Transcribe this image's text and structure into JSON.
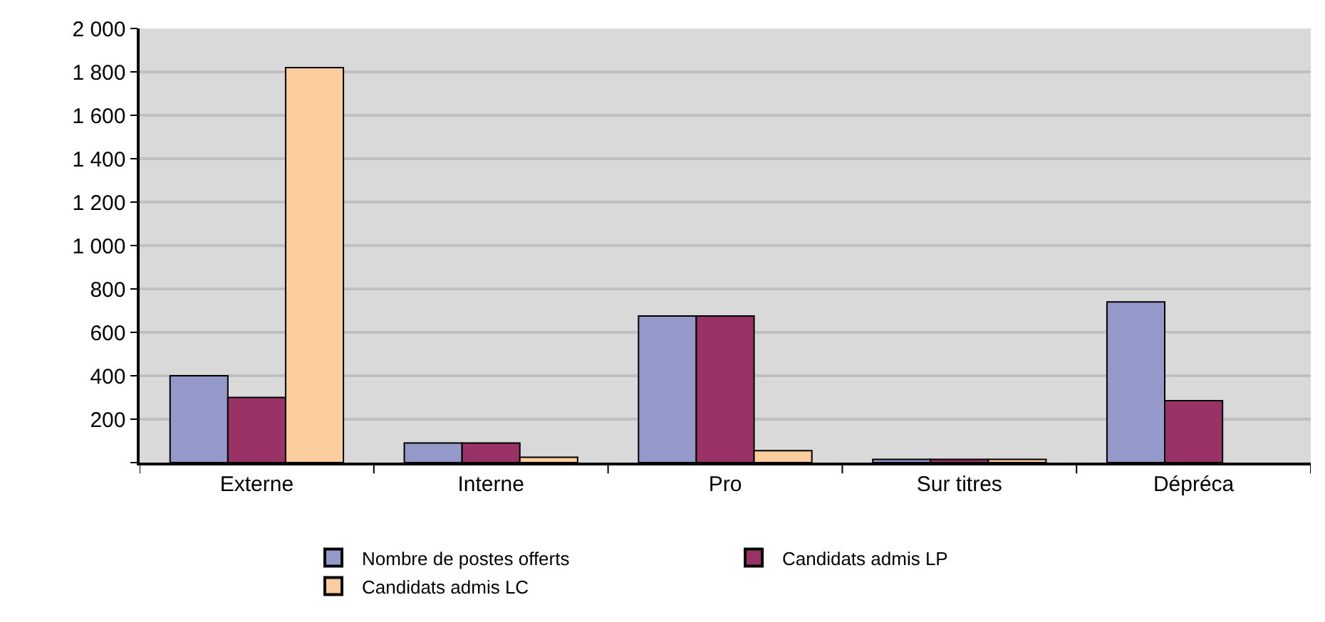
{
  "chart_data": {
    "type": "bar",
    "categories": [
      "Externe",
      "Interne",
      "Pro",
      "Sur titres",
      "Dépréca"
    ],
    "series": [
      {
        "name": "Nombre de postes offerts",
        "color": "#9499c9",
        "values": [
          400,
          90,
          675,
          15,
          740
        ]
      },
      {
        "name": "Candidats admis LP",
        "color": "#993366",
        "values": [
          300,
          90,
          675,
          15,
          285
        ]
      },
      {
        "name": "Candidats admis LC",
        "color": "#facc9e",
        "values": [
          1820,
          25,
          55,
          15,
          null
        ]
      }
    ],
    "ylim": [
      0,
      2000
    ],
    "yticks": [
      {
        "value": 0,
        "label": null
      },
      {
        "value": 200,
        "label": "200"
      },
      {
        "value": 400,
        "label": "400"
      },
      {
        "value": 600,
        "label": "600"
      },
      {
        "value": 800,
        "label": "800"
      },
      {
        "value": 1000,
        "label": "1 000"
      },
      {
        "value": 1200,
        "label": "1 200"
      },
      {
        "value": 1400,
        "label": "1 400"
      },
      {
        "value": 1600,
        "label": "1 600"
      },
      {
        "value": 1800,
        "label": "1 800"
      },
      {
        "value": 2000,
        "label": "2 000"
      }
    ],
    "grid": "y",
    "legend": "bottom"
  }
}
